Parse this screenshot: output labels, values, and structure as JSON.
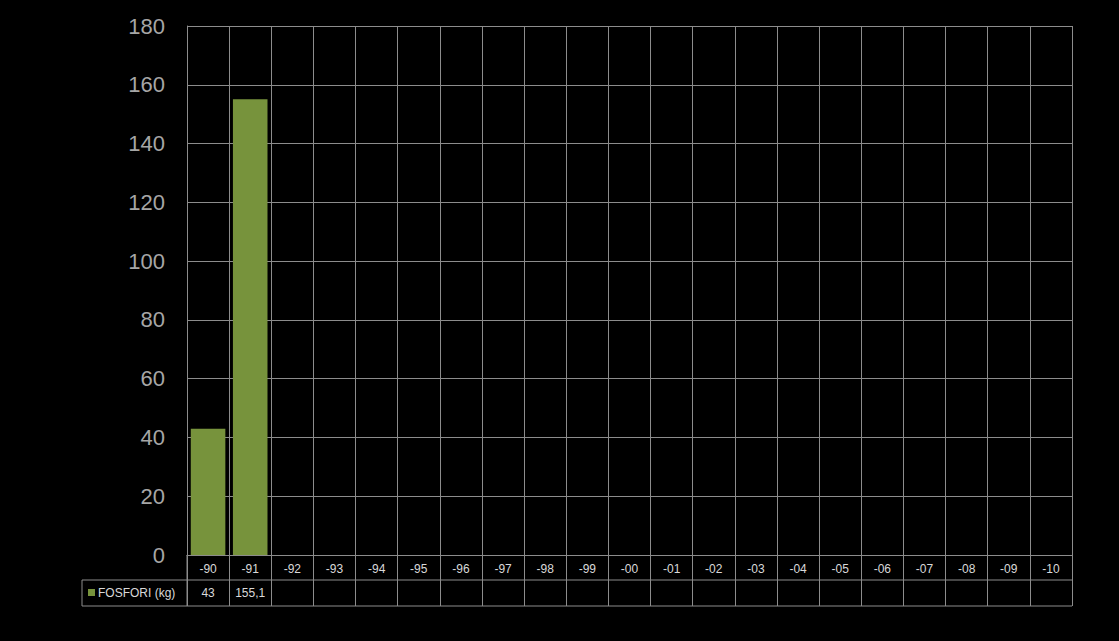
{
  "chart_data": {
    "type": "bar",
    "categories": [
      "-90",
      "-91",
      "-92",
      "-93",
      "-94",
      "-95",
      "-96",
      "-97",
      "-98",
      "-99",
      "-00",
      "-01",
      "-02",
      "-03",
      "-04",
      "-05",
      "-06",
      "-07",
      "-08",
      "-09",
      "-10"
    ],
    "series": [
      {
        "name": "FOSFORI (kg)",
        "color": "#77933c",
        "values": [
          43,
          155.1,
          null,
          null,
          null,
          null,
          null,
          null,
          null,
          null,
          null,
          null,
          null,
          null,
          null,
          null,
          null,
          null,
          null,
          null,
          null
        ],
        "value_labels": [
          "43",
          "155,1",
          null,
          null,
          null,
          null,
          null,
          null,
          null,
          null,
          null,
          null,
          null,
          null,
          null,
          null,
          null,
          null,
          null,
          null,
          null
        ]
      }
    ],
    "ylim": [
      0,
      180
    ],
    "yticks": [
      0,
      20,
      40,
      60,
      80,
      100,
      120,
      140,
      160,
      180
    ],
    "grid": true
  }
}
